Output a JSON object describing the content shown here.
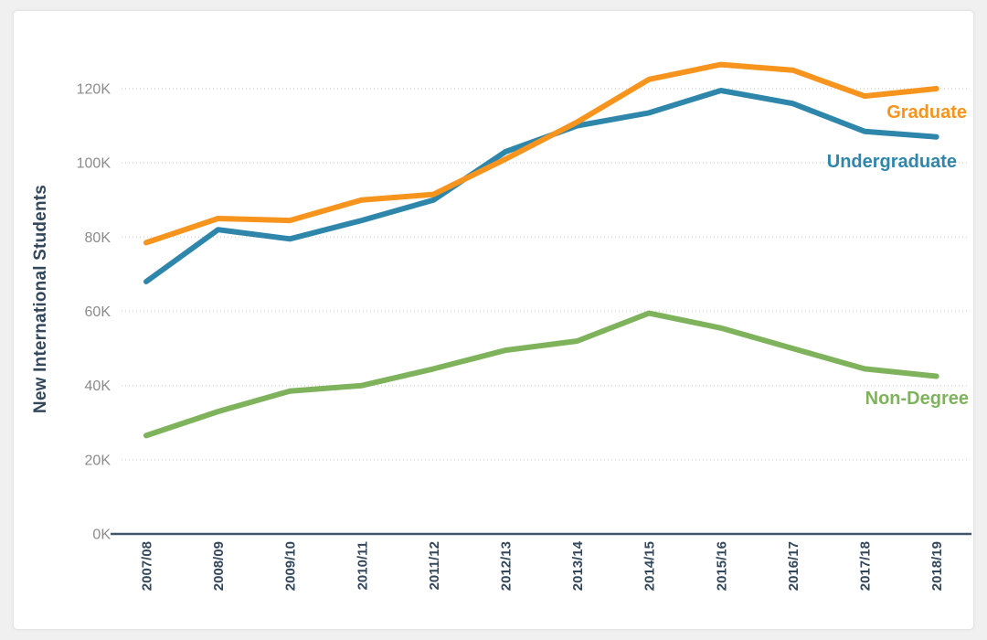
{
  "page": {
    "background_color": "#f0f0f1",
    "card_background_color": "#ffffff"
  },
  "chart_data": {
    "type": "line",
    "title": "",
    "xlabel": "",
    "ylabel": "New International Students",
    "categories": [
      "2007/08",
      "2008/09",
      "2009/10",
      "2010/11",
      "2011/12",
      "2012/13",
      "2013/14",
      "2014/15",
      "2015/16",
      "2016/17",
      "2017/18",
      "2018/19"
    ],
    "series": [
      {
        "name": "Graduate",
        "color": "#F7941E",
        "values": [
          78500,
          85000,
          84500,
          90000,
          91500,
          101000,
          111000,
          122500,
          126500,
          125000,
          118000,
          120000
        ]
      },
      {
        "name": "Undergraduate",
        "color": "#2E86AB",
        "values": [
          68000,
          82000,
          79500,
          84500,
          90000,
          103000,
          110000,
          113500,
          119500,
          116000,
          108500,
          107000
        ]
      },
      {
        "name": "Non-Degree",
        "color": "#7EB35C",
        "values": [
          26500,
          33000,
          38500,
          40000,
          44500,
          49500,
          52000,
          59500,
          55500,
          50000,
          44500,
          42500
        ]
      }
    ],
    "y_ticks": [
      {
        "value": 0,
        "label": "0K"
      },
      {
        "value": 20000,
        "label": "20K"
      },
      {
        "value": 40000,
        "label": "40K"
      },
      {
        "value": 60000,
        "label": "60K"
      },
      {
        "value": 80000,
        "label": "80K"
      },
      {
        "value": 100000,
        "label": "100K"
      },
      {
        "value": 120000,
        "label": "120K"
      }
    ],
    "ylim": [
      0,
      132000
    ],
    "grid": "horizontal-dotted",
    "legend_position": "inline-right-of-lines",
    "axis_colors": {
      "axis_line": "#42566a",
      "gridline": "#d9d9d9",
      "y_tick_label": "#8b8b8b",
      "x_tick_label": "#33475b",
      "y_axis_title": "#33475b"
    }
  }
}
